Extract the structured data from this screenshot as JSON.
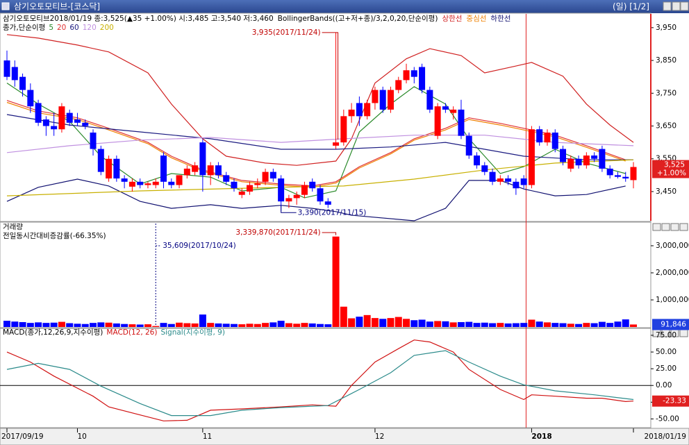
{
  "window": {
    "title": "삼기오토모티브-[코스닥]",
    "period": "(일) [1/2]",
    "last_price": "3,525",
    "last_change": "+1.00%",
    "last_volume": "91,846",
    "last_macd": "-23.33"
  },
  "chart_data": [
    {
      "type": "candlestick",
      "info": "삼기오토모티브2018/01/19 종:3,525(▲35 +1.00%) 시:3,485 고:3,540 저:3,460",
      "indicator": "BollingerBands((고+저+종)/3,2,0,20,단순이평)",
      "ma_label": "종가,단순이평",
      "up_color": "#ff0000",
      "down_color": "#0000ff",
      "ylim": [
        3361,
        3992
      ],
      "yticks": [
        {
          "value": 3950,
          "label": "3,950"
        },
        {
          "value": 3850,
          "label": "3,850"
        },
        {
          "value": 3750,
          "label": "3,750"
        },
        {
          "value": 3650,
          "label": "3,650"
        },
        {
          "value": 3550,
          "label": "3,550"
        },
        {
          "value": 3450,
          "label": "3,450"
        }
      ],
      "ohlc": [
        [
          3850,
          3880,
          3790,
          3800
        ],
        [
          3830,
          3850,
          3770,
          3790
        ],
        [
          3800,
          3810,
          3740,
          3760
        ],
        [
          3760,
          3780,
          3690,
          3710
        ],
        [
          3720,
          3730,
          3650,
          3660
        ],
        [
          3670,
          3680,
          3620,
          3650
        ],
        [
          3650,
          3690,
          3620,
          3640
        ],
        [
          3640,
          3720,
          3630,
          3710
        ],
        [
          3690,
          3700,
          3650,
          3660
        ],
        [
          3670,
          3690,
          3650,
          3660
        ],
        [
          3660,
          3670,
          3640,
          3650
        ],
        [
          3630,
          3640,
          3560,
          3580
        ],
        [
          3580,
          3590,
          3500,
          3510
        ],
        [
          3490,
          3560,
          3480,
          3550
        ],
        [
          3550,
          3560,
          3480,
          3490
        ],
        [
          3490,
          3500,
          3460,
          3480
        ],
        [
          3465,
          3490,
          3450,
          3480
        ],
        [
          3480,
          3490,
          3460,
          3470
        ],
        [
          3470,
          3480,
          3460,
          3475
        ],
        [
          3470,
          3490,
          3460,
          3480
        ],
        [
          3560,
          3570,
          3460,
          3480
        ],
        [
          3480,
          3490,
          3460,
          3470
        ],
        [
          3470,
          3500,
          3460,
          3500
        ],
        [
          3500,
          3530,
          3490,
          3520
        ],
        [
          3510,
          3540,
          3500,
          3530
        ],
        [
          3600,
          3610,
          3450,
          3500
        ],
        [
          3500,
          3540,
          3470,
          3530
        ],
        [
          3530,
          3540,
          3490,
          3500
        ],
        [
          3500,
          3510,
          3470,
          3480
        ],
        [
          3480,
          3490,
          3450,
          3460
        ],
        [
          3440,
          3460,
          3430,
          3450
        ],
        [
          3450,
          3480,
          3440,
          3470
        ],
        [
          3470,
          3490,
          3460,
          3475
        ],
        [
          3480,
          3520,
          3470,
          3510
        ],
        [
          3510,
          3520,
          3480,
          3490
        ],
        [
          3490,
          3500,
          3390,
          3420
        ],
        [
          3420,
          3440,
          3400,
          3430
        ],
        [
          3430,
          3450,
          3410,
          3440
        ],
        [
          3440,
          3480,
          3430,
          3470
        ],
        [
          3480,
          3490,
          3450,
          3460
        ],
        [
          3460,
          3470,
          3410,
          3420
        ],
        [
          3420,
          3430,
          3400,
          3410
        ],
        [
          3590,
          3935,
          3580,
          3600
        ],
        [
          3600,
          3700,
          3590,
          3680
        ],
        [
          3680,
          3720,
          3660,
          3700
        ],
        [
          3720,
          3740,
          3650,
          3680
        ],
        [
          3680,
          3730,
          3670,
          3720
        ],
        [
          3720,
          3770,
          3700,
          3760
        ],
        [
          3760,
          3770,
          3690,
          3700
        ],
        [
          3700,
          3770,
          3690,
          3760
        ],
        [
          3760,
          3800,
          3750,
          3790
        ],
        [
          3790,
          3840,
          3780,
          3820
        ],
        [
          3820,
          3830,
          3780,
          3800
        ],
        [
          3830,
          3840,
          3750,
          3760
        ],
        [
          3760,
          3770,
          3690,
          3700
        ],
        [
          3620,
          3720,
          3610,
          3710
        ],
        [
          3710,
          3720,
          3690,
          3700
        ],
        [
          3690,
          3710,
          3670,
          3700
        ],
        [
          3700,
          3730,
          3610,
          3620
        ],
        [
          3620,
          3630,
          3550,
          3560
        ],
        [
          3560,
          3570,
          3520,
          3530
        ],
        [
          3530,
          3540,
          3500,
          3510
        ],
        [
          3510,
          3520,
          3470,
          3480
        ],
        [
          3480,
          3500,
          3470,
          3490
        ],
        [
          3490,
          3500,
          3470,
          3480
        ],
        [
          3480,
          3490,
          3440,
          3460
        ],
        [
          3490,
          3500,
          3460,
          3470
        ],
        [
          3470,
          3650,
          3460,
          3640
        ],
        [
          3640,
          3650,
          3590,
          3600
        ],
        [
          3600,
          3640,
          3590,
          3630
        ],
        [
          3630,
          3640,
          3570,
          3580
        ],
        [
          3580,
          3590,
          3530,
          3540
        ],
        [
          3520,
          3560,
          3510,
          3550
        ],
        [
          3550,
          3560,
          3520,
          3530
        ],
        [
          3530,
          3570,
          3520,
          3560
        ],
        [
          3560,
          3570,
          3540,
          3550
        ],
        [
          3580,
          3590,
          3510,
          3520
        ],
        [
          3520,
          3530,
          3490,
          3500
        ],
        [
          3500,
          3510,
          3490,
          3495
        ],
        [
          3495,
          3510,
          3480,
          3490
        ],
        [
          3485,
          3540,
          3460,
          3525
        ]
      ],
      "series": [
        {
          "name": "상한선",
          "color": "#d02020",
          "x": [
            0,
            4,
            9,
            13,
            18,
            21,
            25,
            28,
            33,
            37,
            42,
            44,
            47,
            51,
            54,
            58,
            61,
            65,
            67,
            71,
            74,
            77,
            80
          ],
          "values": [
            3929,
            3918,
            3897,
            3876,
            3812,
            3717,
            3611,
            3558,
            3537,
            3530,
            3543,
            3611,
            3781,
            3855,
            3886,
            3865,
            3812,
            3833,
            3844,
            3802,
            3717,
            3653,
            3600
          ]
        },
        {
          "name": "중심선",
          "color": "#f08000",
          "x": [
            0,
            4,
            9,
            13,
            18,
            21,
            25,
            30,
            35,
            39,
            42,
            45,
            49,
            52,
            56,
            59,
            63,
            66,
            70,
            74,
            79
          ],
          "values": [
            3722,
            3690,
            3670,
            3638,
            3596,
            3553,
            3512,
            3480,
            3469,
            3463,
            3476,
            3522,
            3565,
            3607,
            3638,
            3670,
            3653,
            3638,
            3617,
            3585,
            3543
          ]
        },
        {
          "name": "하한선",
          "color": "#101070",
          "x": [
            0,
            4,
            9,
            13,
            17,
            21,
            26,
            30,
            35,
            39,
            42,
            44,
            52,
            56,
            59,
            63,
            66,
            70,
            74,
            79
          ],
          "values": [
            3420,
            3463,
            3488,
            3467,
            3420,
            3399,
            3410,
            3399,
            3408,
            3399,
            3389,
            3378,
            3361,
            3399,
            3484,
            3484,
            3458,
            3437,
            3441,
            3467
          ]
        },
        {
          "name": "5",
          "color": "#2a8a2a",
          "x": [
            0,
            4,
            8,
            12,
            17,
            21,
            26,
            30,
            35,
            38,
            42,
            45,
            49,
            52,
            56,
            59,
            63,
            66,
            70,
            74,
            79
          ],
          "values": [
            3781,
            3717,
            3664,
            3558,
            3473,
            3505,
            3494,
            3452,
            3463,
            3431,
            3452,
            3632,
            3717,
            3770,
            3717,
            3611,
            3505,
            3526,
            3579,
            3537,
            3505
          ]
        },
        {
          "name": "20",
          "color": "#e03030",
          "x": [
            0,
            4,
            9,
            13,
            18,
            21,
            25,
            30,
            35,
            39,
            42,
            45,
            49,
            52,
            56,
            59,
            63,
            66,
            70,
            74,
            79
          ],
          "values": [
            3728,
            3696,
            3675,
            3643,
            3600,
            3558,
            3516,
            3484,
            3473,
            3467,
            3480,
            3526,
            3569,
            3611,
            3643,
            3675,
            3658,
            3643,
            3622,
            3590,
            3547
          ]
        },
        {
          "name": "60",
          "color": "#1a1a80",
          "x": [
            0,
            8,
            17,
            26,
            35,
            42,
            49,
            56,
            61,
            66,
            74,
            80
          ],
          "values": [
            3685,
            3653,
            3632,
            3611,
            3579,
            3579,
            3586,
            3600,
            3579,
            3558,
            3547,
            3547
          ]
        },
        {
          "name": "120",
          "color": "#c090e0",
          "x": [
            0,
            8,
            17,
            26,
            35,
            43,
            52,
            61,
            70,
            80
          ],
          "values": [
            3569,
            3590,
            3607,
            3615,
            3600,
            3611,
            3622,
            3622,
            3600,
            3590
          ]
        },
        {
          "name": "200",
          "color": "#c8b000",
          "x": [
            0,
            17,
            35,
            43,
            52,
            61,
            70,
            80
          ],
          "values": [
            3437,
            3452,
            3463,
            3467,
            3488,
            3516,
            3537,
            3547
          ]
        }
      ],
      "high_mark": {
        "index": 42,
        "value": 3935,
        "label": "3,935(2017/11/24)"
      },
      "low_mark": {
        "index": 35,
        "value": 3390,
        "label": "3,390(2017/11/15)"
      }
    },
    {
      "type": "bar",
      "title": "거래량",
      "subtitle": "전일동시간대비증감률(-66.35%)",
      "ylim": [
        0,
        3820000
      ],
      "yticks": [
        {
          "value": 3000000,
          "label": "3,000,000"
        },
        {
          "value": 2000000,
          "label": "2,000,000"
        },
        {
          "value": 1000000,
          "label": "1,000,000"
        }
      ],
      "values": [
        230000,
        200000,
        180000,
        150000,
        170000,
        150000,
        160000,
        190000,
        140000,
        120000,
        110000,
        150000,
        170000,
        160000,
        130000,
        110000,
        100000,
        90000,
        100000,
        35609,
        150000,
        110000,
        160000,
        140000,
        130000,
        460000,
        150000,
        130000,
        120000,
        110000,
        100000,
        120000,
        110000,
        150000,
        170000,
        230000,
        140000,
        120000,
        150000,
        130000,
        110000,
        100000,
        3339870,
        750000,
        320000,
        380000,
        440000,
        330000,
        300000,
        330000,
        370000,
        300000,
        250000,
        270000,
        200000,
        220000,
        210000,
        170000,
        180000,
        190000,
        150000,
        160000,
        140000,
        150000,
        130000,
        140000,
        150000,
        270000,
        200000,
        170000,
        150000,
        140000,
        120000,
        110000,
        150000,
        140000,
        190000,
        150000,
        200000,
        280000,
        91846
      ],
      "max_mark": {
        "index": 42,
        "label": "3,339,870(2017/11/24)"
      },
      "min_mark": {
        "index": 19,
        "label": "35,609(2017/10/24)"
      }
    },
    {
      "type": "line",
      "title": "MACD(종가,12,26,9,지수이평)",
      "ylim": [
        -62,
        76
      ],
      "yticks": [
        {
          "value": 75,
          "label": "75.00"
        },
        {
          "value": 50,
          "label": "50.00"
        },
        {
          "value": 25,
          "label": "25.00"
        },
        {
          "value": 0,
          "label": "0.00"
        },
        {
          "value": -25,
          "label": "-25.00"
        },
        {
          "value": -50,
          "label": "-50.00"
        }
      ],
      "series": [
        {
          "name": "MACD(12, 26)",
          "color": "#d01010",
          "x": [
            0,
            3,
            6,
            11,
            13,
            17,
            20,
            23,
            26,
            30,
            35,
            39,
            42,
            44,
            47,
            50,
            52,
            54,
            57,
            59,
            63,
            66,
            67,
            70,
            74,
            76,
            79,
            80
          ],
          "values": [
            50,
            35,
            14,
            -16,
            -32,
            -44,
            -53,
            -52,
            -37,
            -35,
            -32,
            -29,
            -31,
            0,
            35,
            55,
            68,
            65,
            50,
            24,
            -6,
            -21,
            -14,
            -16,
            -19,
            -19,
            -24,
            -23.33
          ]
        },
        {
          "name": "Signal(지수이평, 9)",
          "color": "#2a8a8a",
          "x": [
            0,
            4,
            8,
            12,
            17,
            21,
            26,
            30,
            35,
            41,
            45,
            49,
            52,
            56,
            59,
            63,
            66,
            70,
            75,
            80
          ],
          "values": [
            24,
            33,
            24,
            -1,
            -27,
            -45,
            -45,
            -37,
            -33,
            -30,
            -6,
            19,
            45,
            52,
            35,
            14,
            1,
            -8,
            -14,
            -21
          ]
        }
      ]
    }
  ],
  "x_labels": [
    {
      "index": 0,
      "label": "2017/09/19"
    },
    {
      "index": 9,
      "label": "10"
    },
    {
      "index": 25,
      "label": "11"
    },
    {
      "index": 47,
      "label": "12"
    },
    {
      "index": 67,
      "label": "2018"
    },
    {
      "index": 80,
      "label": "2018/01/19"
    }
  ]
}
